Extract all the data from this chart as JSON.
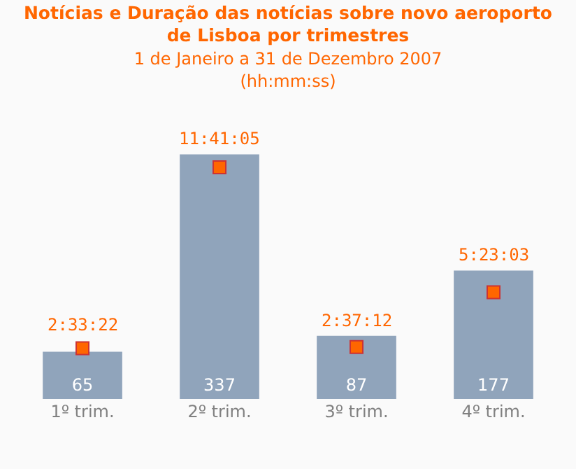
{
  "chart_data": {
    "type": "bar",
    "title": "Notícias e Duração das notícias sobre novo aeroporto\nde Lisboa por trimestres",
    "subtitle": "1 de Janeiro a 31 de Dezembro 2007\n(hh:mm:ss)",
    "categories": [
      "1º trim.",
      "2º trim.",
      "3º trim.",
      "4º trim."
    ],
    "series": [
      {
        "color": "#90a4bb",
        "values": [
          65,
          337,
          87,
          177
        ]
      },
      {
        "type": "scatter",
        "axis": "y2",
        "color": "#ff6600",
        "marker": "square",
        "values": [
          2.5561,
          11.6847,
          2.62,
          5.3842
        ],
        "value_labels": [
          "2:33:22",
          "11:41:05",
          "2:37:12",
          "5:23:03"
        ]
      }
    ],
    "data_labels": true,
    "tick_labels": "x",
    "grid": false,
    "legend": false
  }
}
